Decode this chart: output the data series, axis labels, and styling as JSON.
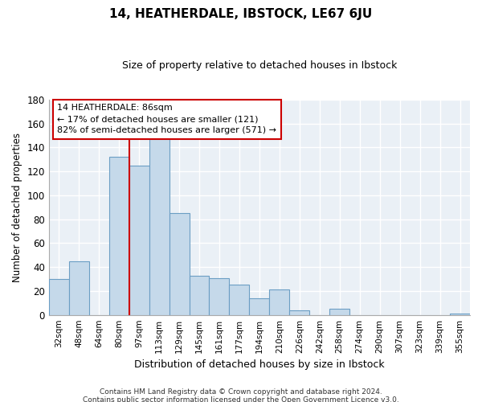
{
  "title": "14, HEATHERDALE, IBSTOCK, LE67 6JU",
  "subtitle": "Size of property relative to detached houses in Ibstock",
  "xlabel": "Distribution of detached houses by size in Ibstock",
  "ylabel": "Number of detached properties",
  "bar_labels": [
    "32sqm",
    "48sqm",
    "64sqm",
    "80sqm",
    "97sqm",
    "113sqm",
    "129sqm",
    "145sqm",
    "161sqm",
    "177sqm",
    "194sqm",
    "210sqm",
    "226sqm",
    "242sqm",
    "258sqm",
    "274sqm",
    "290sqm",
    "307sqm",
    "323sqm",
    "339sqm",
    "355sqm"
  ],
  "bar_values": [
    30,
    45,
    0,
    132,
    125,
    148,
    85,
    33,
    31,
    25,
    14,
    21,
    4,
    0,
    5,
    0,
    0,
    0,
    0,
    0,
    1
  ],
  "bar_color": "#c5d9ea",
  "bar_edge_color": "#6b9ec4",
  "vline_color": "#cc0000",
  "annotation_text": "14 HEATHERDALE: 86sqm\n← 17% of detached houses are smaller (121)\n82% of semi-detached houses are larger (571) →",
  "annotation_box_color": "white",
  "annotation_box_edge_color": "#cc0000",
  "ylim": [
    0,
    180
  ],
  "yticks": [
    0,
    20,
    40,
    60,
    80,
    100,
    120,
    140,
    160,
    180
  ],
  "footnote1": "Contains HM Land Registry data © Crown copyright and database right 2024.",
  "footnote2": "Contains public sector information licensed under the Open Government Licence v3.0.",
  "bg_color": "#eaf0f6",
  "grid_color": "#ffffff"
}
